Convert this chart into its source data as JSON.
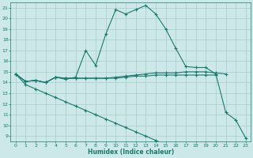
{
  "xlabel": "Humidex (Indice chaleur)",
  "background_color": "#cce8e8",
  "line_color": "#1a7a6e",
  "grid_color": "#aacccc",
  "x_values": [
    0,
    1,
    2,
    3,
    4,
    5,
    6,
    7,
    8,
    9,
    10,
    11,
    12,
    13,
    14,
    15,
    16,
    17,
    18,
    19,
    20,
    21,
    22,
    23
  ],
  "line1": [
    14.8,
    14.1,
    14.2,
    14.0,
    14.5,
    14.3,
    14.5,
    17.0,
    15.6,
    18.5,
    20.8,
    20.4,
    20.8,
    21.2,
    20.4,
    19.0,
    17.2,
    15.5,
    15.4,
    15.4,
    14.8,
    11.2,
    10.5,
    8.8
  ],
  "line2": [
    14.8,
    14.1,
    14.2,
    14.0,
    14.5,
    14.4,
    14.4,
    14.4,
    14.4,
    14.4,
    14.5,
    14.6,
    14.7,
    14.8,
    14.9,
    14.9,
    14.9,
    15.0,
    15.0,
    15.0,
    14.9,
    14.8,
    null,
    null
  ],
  "line3": [
    14.8,
    14.1,
    14.2,
    14.0,
    14.5,
    14.4,
    14.4,
    14.4,
    14.4,
    14.4,
    14.4,
    14.5,
    14.6,
    14.6,
    14.7,
    14.7,
    14.7,
    14.7,
    14.7,
    14.7,
    14.7,
    null,
    null,
    null
  ],
  "line4": [
    14.8,
    13.8,
    13.4,
    13.0,
    12.6,
    12.2,
    11.8,
    11.4,
    11.0,
    10.6,
    10.2,
    9.8,
    9.4,
    9.0,
    8.6,
    8.2,
    null,
    null,
    null,
    null,
    null,
    null,
    null,
    null
  ],
  "ylim_min": 8.5,
  "ylim_max": 21.5,
  "xlim_min": -0.5,
  "xlim_max": 23.5,
  "yticks": [
    9,
    10,
    11,
    12,
    13,
    14,
    15,
    16,
    17,
    18,
    19,
    20,
    21
  ],
  "xticks": [
    0,
    1,
    2,
    3,
    4,
    5,
    6,
    7,
    8,
    9,
    10,
    11,
    12,
    13,
    14,
    15,
    16,
    17,
    18,
    19,
    20,
    21,
    22,
    23
  ]
}
